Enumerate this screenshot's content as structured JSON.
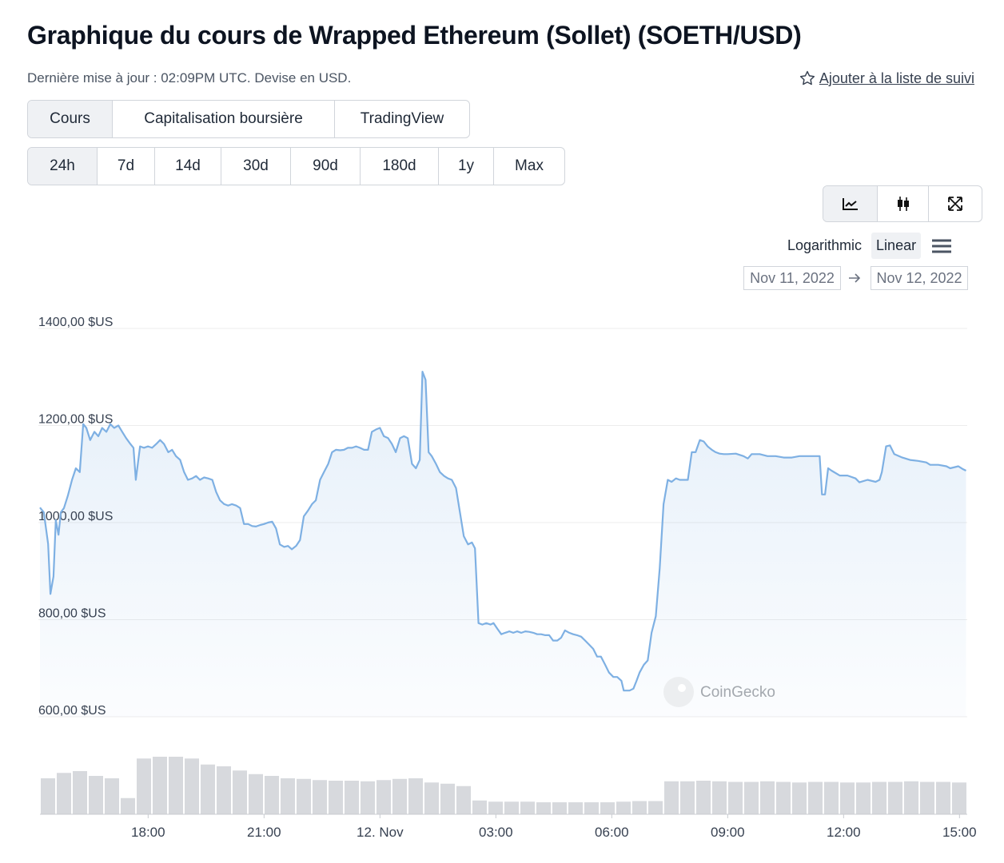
{
  "header": {
    "title": "Graphique du cours de Wrapped Ethereum (Sollet) (SOETH/USD)",
    "subtitle": "Dernière mise à jour : 02:09PM UTC. Devise en USD.",
    "watchlist": "Ajouter à la liste de suivi"
  },
  "tabs": [
    "Cours",
    "Capitalisation boursière",
    "TradingView"
  ],
  "selected_tab": 0,
  "ranges": [
    "24h",
    "7d",
    "14d",
    "30d",
    "90d",
    "180d",
    "1y",
    "Max"
  ],
  "selected_range": 0,
  "scales": [
    "Logarithmic",
    "Linear"
  ],
  "selected_scale": 1,
  "date_range": {
    "from": "Nov 11, 2022",
    "to": "Nov 12, 2022"
  },
  "watermark": "CoinGecko",
  "chart_data": {
    "type": "line",
    "xlim": [
      15.2,
      39.2
    ],
    "xticks": [
      {
        "value": 18,
        "label": "18:00"
      },
      {
        "value": 21,
        "label": "21:00"
      },
      {
        "value": 24,
        "label": "12. Nov"
      },
      {
        "value": 27,
        "label": "03:00"
      },
      {
        "value": 30,
        "label": "06:00"
      },
      {
        "value": 33,
        "label": "09:00"
      },
      {
        "value": 36,
        "label": "12:00"
      },
      {
        "value": 39,
        "label": "15:00"
      }
    ],
    "ylim": [
      600,
      1400
    ],
    "yticks": [
      {
        "value": 600,
        "label": "600,00 $US"
      },
      {
        "value": 800,
        "label": "800,00 $US"
      },
      {
        "value": 1000,
        "label": "1000,00 $US"
      },
      {
        "value": 1200,
        "label": "1200,00 $US"
      },
      {
        "value": 1400,
        "label": "1400,00 $US"
      }
    ],
    "grid": true,
    "x": [
      15.2,
      15.3,
      15.41,
      15.47,
      15.55,
      15.61,
      15.68,
      15.74,
      15.82,
      15.92,
      16.03,
      16.13,
      16.23,
      16.32,
      16.4,
      16.5,
      16.61,
      16.71,
      16.81,
      16.92,
      17.02,
      17.12,
      17.23,
      17.33,
      17.43,
      17.54,
      17.62,
      17.68,
      17.79,
      17.89,
      18,
      18.1,
      18.21,
      18.31,
      18.41,
      18.52,
      18.62,
      18.72,
      18.83,
      18.93,
      19.03,
      19.14,
      19.24,
      19.34,
      19.45,
      19.55,
      19.66,
      19.76,
      19.86,
      19.97,
      20.07,
      20.17,
      20.28,
      20.38,
      20.48,
      20.59,
      20.69,
      20.79,
      20.9,
      21,
      21.1,
      21.21,
      21.31,
      21.41,
      21.52,
      21.62,
      21.72,
      21.83,
      21.93,
      22.03,
      22.14,
      22.24,
      22.34,
      22.45,
      22.55,
      22.66,
      22.76,
      22.86,
      22.97,
      23.07,
      23.17,
      23.28,
      23.38,
      23.48,
      23.59,
      23.69,
      23.79,
      23.9,
      24,
      24.1,
      24.21,
      24.31,
      24.41,
      24.52,
      24.62,
      24.72,
      24.83,
      24.93,
      25.03,
      25.1,
      25.18,
      25.26,
      25.34,
      25.45,
      25.55,
      25.66,
      25.76,
      25.86,
      25.97,
      26.07,
      26.17,
      26.28,
      26.38,
      26.46,
      26.55,
      26.65,
      26.75,
      26.86,
      26.94,
      27.04,
      27.14,
      27.24,
      27.35,
      27.45,
      27.55,
      27.66,
      27.76,
      27.86,
      27.97,
      28.07,
      28.17,
      28.28,
      28.38,
      28.48,
      28.59,
      28.69,
      28.79,
      28.9,
      29,
      29.1,
      29.21,
      29.31,
      29.41,
      29.52,
      29.62,
      29.72,
      29.83,
      29.93,
      30.04,
      30.14,
      30.25,
      30.31,
      30.46,
      30.56,
      30.64,
      30.72,
      30.83,
      30.93,
      31.03,
      31.14,
      31.24,
      31.34,
      31.45,
      31.55,
      31.66,
      31.76,
      31.86,
      31.97,
      32.07,
      32.17,
      32.28,
      32.38,
      32.48,
      32.59,
      32.69,
      32.79,
      32.9,
      33,
      33.21,
      33.41,
      33.52,
      33.62,
      33.83,
      34.03,
      34.24,
      34.45,
      34.66,
      34.86,
      35.07,
      35.28,
      35.38,
      35.44,
      35.52,
      35.6,
      35.69,
      35.9,
      36.1,
      36.31,
      36.41,
      36.62,
      36.83,
      36.93,
      36.99,
      37.1,
      37.2,
      37.31,
      37.52,
      37.72,
      37.93,
      38.14,
      38.24,
      38.45,
      38.66,
      38.76,
      38.97,
      39.07,
      39.17
    ],
    "series": [
      {
        "name": "Cours",
        "color": "#7eb0e3",
        "values": [
          1031,
          1021,
          956,
          853,
          889,
          1005,
          975,
          1021,
          1030,
          1055,
          1088,
          1112,
          1104,
          1203,
          1195,
          1170,
          1187,
          1178,
          1195,
          1187,
          1203,
          1195,
          1200,
          1187,
          1174,
          1162,
          1154,
          1088,
          1157,
          1154,
          1157,
          1154,
          1162,
          1170,
          1162,
          1145,
          1150,
          1137,
          1129,
          1104,
          1088,
          1091,
          1096,
          1088,
          1093,
          1091,
          1088,
          1063,
          1046,
          1038,
          1035,
          1038,
          1035,
          1030,
          997,
          997,
          993,
          992,
          995,
          997,
          1000,
          1002,
          988,
          955,
          950,
          952,
          945,
          952,
          964,
          1013,
          1025,
          1038,
          1046,
          1088,
          1104,
          1121,
          1145,
          1150,
          1149,
          1150,
          1154,
          1154,
          1157,
          1154,
          1150,
          1150,
          1187,
          1192,
          1195,
          1178,
          1174,
          1162,
          1145,
          1174,
          1178,
          1174,
          1121,
          1112,
          1129,
          1311,
          1294,
          1145,
          1137,
          1121,
          1104,
          1096,
          1091,
          1088,
          1071,
          1021,
          972,
          955,
          959,
          947,
          793,
          790,
          793,
          790,
          793,
          781,
          770,
          773,
          776,
          773,
          776,
          773,
          776,
          775,
          773,
          770,
          770,
          768,
          768,
          757,
          757,
          763,
          778,
          773,
          770,
          768,
          765,
          757,
          749,
          740,
          724,
          724,
          707,
          691,
          682,
          682,
          674,
          654,
          654,
          658,
          674,
          691,
          707,
          716,
          773,
          807,
          906,
          1038,
          1088,
          1084,
          1091,
          1088,
          1088,
          1088,
          1145,
          1145,
          1170,
          1167,
          1157,
          1150,
          1145,
          1142,
          1141,
          1141,
          1142,
          1137,
          1132,
          1141,
          1141,
          1137,
          1137,
          1134,
          1134,
          1137,
          1137,
          1137,
          1137,
          1058,
          1058,
          1112,
          1107,
          1097,
          1097,
          1091,
          1083,
          1088,
          1084,
          1088,
          1104,
          1157,
          1159,
          1141,
          1134,
          1129,
          1127,
          1124,
          1119,
          1119,
          1116,
          1112,
          1116,
          1111,
          1107
        ]
      }
    ],
    "volume": {
      "color": "#d7d9dd",
      "ylim": [
        0,
        100
      ],
      "values": [
        60,
        69,
        72,
        64,
        60,
        27,
        93,
        96,
        96,
        93,
        83,
        80,
        73,
        67,
        64,
        60,
        59,
        57,
        56,
        56,
        55,
        57,
        59,
        60,
        53,
        51,
        47,
        23,
        21,
        21,
        21,
        20,
        20,
        20,
        20,
        20,
        21,
        22,
        22,
        55,
        55,
        56,
        55,
        54,
        54,
        55,
        54,
        53,
        54,
        54,
        53,
        53,
        54,
        54,
        55,
        54,
        54,
        53
      ]
    }
  }
}
